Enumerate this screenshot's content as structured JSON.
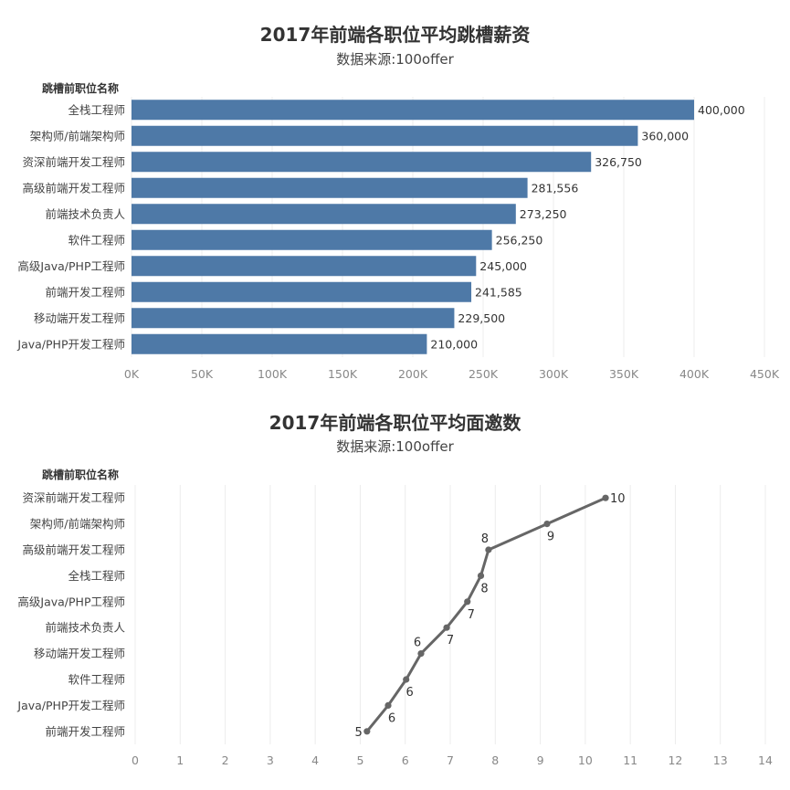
{
  "chart_data": [
    {
      "type": "bar",
      "orientation": "horizontal",
      "title": "2017年前端各职位平均跳槽薪资",
      "subtitle": "数据来源:100offer",
      "ylabel": "跳槽前职位名称",
      "categories": [
        "全栈工程师",
        "架构师/前端架构师",
        "资深前端开发工程师",
        "高级前端开发工程师",
        "前端技术负责人",
        "软件工程师",
        "高级Java/PHP工程师",
        "前端开发工程师",
        "移动端开发工程师",
        "Java/PHP开发工程师"
      ],
      "values": [
        400000,
        360000,
        326750,
        281556,
        273250,
        256250,
        245000,
        241585,
        229500,
        210000
      ],
      "value_labels": [
        "400,000",
        "360,000",
        "326,750",
        "281,556",
        "273,250",
        "256,250",
        "245,000",
        "241,585",
        "229,500",
        "210,000"
      ],
      "xlim": [
        0,
        450000
      ],
      "xticks": [
        0,
        50000,
        100000,
        150000,
        200000,
        250000,
        300000,
        350000,
        400000,
        450000
      ],
      "xtick_labels": [
        "0K",
        "50K",
        "100K",
        "150K",
        "200K",
        "250K",
        "300K",
        "350K",
        "400K",
        "450K"
      ],
      "grid": "vertical",
      "color": "#4e79a7"
    },
    {
      "type": "line",
      "title": "2017年前端各职位平均面邀数",
      "subtitle": "数据来源:100offer",
      "ylabel": "跳槽前职位名称",
      "categories": [
        "资深前端开发工程师",
        "架构师/前端架构师",
        "高级前端开发工程师",
        "全栈工程师",
        "高级Java/PHP工程师",
        "前端技术负责人",
        "移动端开发工程师",
        "软件工程师",
        "Java/PHP开发工程师",
        "前端开发工程师"
      ],
      "values": [
        10.45,
        9.15,
        7.85,
        7.68,
        7.38,
        6.92,
        6.35,
        6.02,
        5.62,
        5.15
      ],
      "value_labels": [
        "10",
        "9",
        "8",
        "8",
        "7",
        "7",
        "6",
        "6",
        "6",
        "5"
      ],
      "label_positions": [
        "right",
        "below",
        "above",
        "below",
        "below",
        "below",
        "above",
        "below",
        "below",
        "left"
      ],
      "xlim": [
        0,
        14
      ],
      "xticks": [
        0,
        1,
        2,
        3,
        4,
        5,
        6,
        7,
        8,
        9,
        10,
        11,
        12,
        13,
        14
      ],
      "xtick_labels": [
        "0",
        "1",
        "2",
        "3",
        "4",
        "5",
        "6",
        "7",
        "8",
        "9",
        "10",
        "11",
        "12",
        "13",
        "14"
      ],
      "grid": "vertical",
      "color": "#666666"
    }
  ]
}
